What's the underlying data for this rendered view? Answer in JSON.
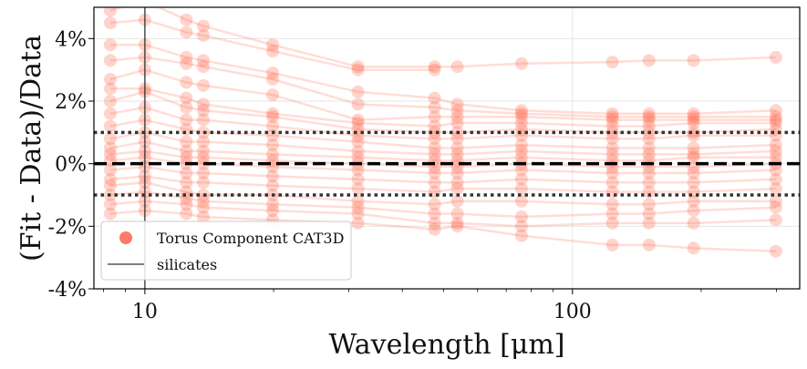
{
  "chart_data": {
    "type": "line",
    "title": "",
    "xlabel": "Wavelength [μm]",
    "ylabel": "(Fit - Data)/Data",
    "xscale": "log",
    "xlim": [
      7.6,
      340
    ],
    "ylim": [
      -4,
      5
    ],
    "xticks": [
      {
        "value": 10,
        "label": "10"
      },
      {
        "value": 100,
        "label": "100"
      }
    ],
    "yticks": [
      {
        "value": 4,
        "label": "4%"
      },
      {
        "value": 2,
        "label": "2%"
      },
      {
        "value": 0,
        "label": "0%"
      },
      {
        "value": -2,
        "label": "-2%"
      },
      {
        "value": -4,
        "label": "-4%"
      }
    ],
    "grid": true,
    "legend_position": "lower-left",
    "legend": [
      {
        "label": "Torus Component CAT3D",
        "marker": "circle",
        "color": "#ff6347"
      },
      {
        "label": "silicates",
        "marker": "line",
        "color": "#333333"
      }
    ],
    "reference_lines": [
      {
        "y": 0,
        "style": "dashed"
      },
      {
        "y": 1,
        "style": "dotted"
      },
      {
        "y": -1,
        "style": "dotted"
      }
    ],
    "silicate_line_x": 10,
    "x": [
      8.3,
      10,
      12.5,
      13.7,
      19.9,
      31.5,
      47.6,
      53.8,
      76,
      124,
      151,
      192,
      299
    ],
    "series_color": "#ff6347",
    "series": [
      {
        "values": [
          4.9,
          5.2,
          4.6,
          4.4,
          3.8,
          3.1,
          3.1,
          3.1,
          3.2,
          3.25,
          3.3,
          3.3,
          3.4
        ]
      },
      {
        "values": [
          4.5,
          4.6,
          4.2,
          4.1,
          3.6,
          3.0,
          3.0,
          null,
          null,
          null,
          null,
          null,
          null
        ]
      },
      {
        "values": [
          3.8,
          3.8,
          3.4,
          3.3,
          2.9,
          2.3,
          2.1,
          1.9,
          1.7,
          1.6,
          1.6,
          1.6,
          1.7
        ]
      },
      {
        "values": [
          3.3,
          3.4,
          3.2,
          3.1,
          2.7,
          1.9,
          1.8,
          1.7,
          1.6,
          1.5,
          1.5,
          1.5,
          1.5
        ]
      },
      {
        "values": [
          2.7,
          3.0,
          2.6,
          2.5,
          2.2,
          1.4,
          1.5,
          1.5,
          1.5,
          1.4,
          1.4,
          1.4,
          1.4
        ]
      },
      {
        "values": [
          2.4,
          2.4,
          2.1,
          1.9,
          1.6,
          1.3,
          1.2,
          1.3,
          1.3,
          1.2,
          1.2,
          1.3,
          1.3
        ]
      },
      {
        "values": [
          2.0,
          2.3,
          1.8,
          1.7,
          1.5,
          1.1,
          1.0,
          1.0,
          1.1,
          1.0,
          1.0,
          1.0,
          1.1
        ]
      },
      {
        "values": [
          1.6,
          1.8,
          1.4,
          1.4,
          1.2,
          0.9,
          0.8,
          0.8,
          0.9,
          0.8,
          0.8,
          0.9,
          0.9
        ]
      },
      {
        "values": [
          1.2,
          1.4,
          1.1,
          1.0,
          0.9,
          0.7,
          0.5,
          0.5,
          0.6,
          0.5,
          0.5,
          0.5,
          0.6
        ]
      },
      {
        "values": [
          0.8,
          1.0,
          0.7,
          0.7,
          0.6,
          0.4,
          0.3,
          0.3,
          0.4,
          0.3,
          0.3,
          0.3,
          0.4
        ]
      },
      {
        "values": [
          0.5,
          0.7,
          0.4,
          0.4,
          0.3,
          0.2,
          0.1,
          0.1,
          0.2,
          0.1,
          0.1,
          0.2,
          0.2
        ]
      },
      {
        "values": [
          0.3,
          0.4,
          0.2,
          0.2,
          0.1,
          0.0,
          -0.1,
          -0.1,
          0.0,
          -0.1,
          -0.1,
          -0.1,
          0.0
        ]
      },
      {
        "values": [
          0.1,
          0.2,
          0.0,
          0.0,
          -0.1,
          -0.2,
          -0.3,
          -0.3,
          -0.2,
          -0.3,
          -0.3,
          -0.3,
          -0.2
        ]
      },
      {
        "values": [
          -0.2,
          -0.1,
          -0.3,
          -0.3,
          -0.4,
          -0.5,
          -0.6,
          -0.6,
          -0.5,
          -0.6,
          -0.6,
          -0.6,
          -0.5
        ]
      },
      {
        "values": [
          -0.5,
          -0.4,
          -0.6,
          -0.6,
          -0.7,
          -0.8,
          -0.9,
          -0.8,
          -0.8,
          -0.9,
          -0.9,
          -0.9,
          -0.8
        ]
      },
      {
        "values": [
          -0.7,
          -0.6,
          -0.9,
          -1.0,
          -1.0,
          -1.2,
          -1.3,
          -1.2,
          -1.2,
          -1.3,
          -1.3,
          -1.2,
          -1.2
        ]
      },
      {
        "values": [
          -1.0,
          -0.9,
          -1.1,
          -1.2,
          -1.3,
          -1.4,
          -1.6,
          -1.6,
          -1.7,
          -1.6,
          -1.6,
          -1.5,
          -1.4
        ]
      },
      {
        "values": [
          -1.3,
          -1.2,
          -1.3,
          -1.4,
          -1.5,
          -1.6,
          -1.9,
          -1.9,
          -2.0,
          -1.9,
          -1.9,
          -1.9,
          -1.8
        ]
      },
      {
        "values": [
          -1.6,
          -1.5,
          -1.6,
          -1.7,
          -1.8,
          -1.9,
          -2.1,
          -2.0,
          -2.3,
          -2.6,
          -2.6,
          -2.7,
          -2.8
        ]
      }
    ]
  }
}
